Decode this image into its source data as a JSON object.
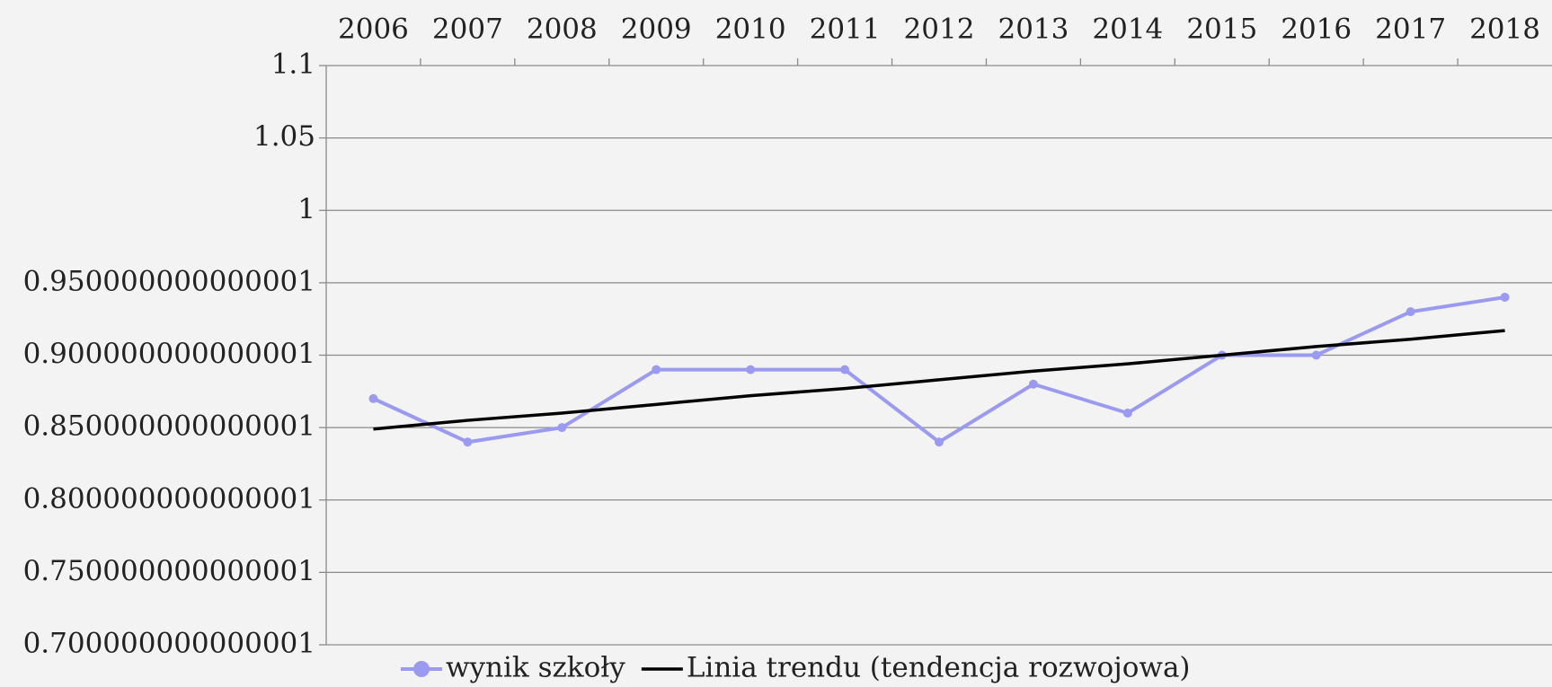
{
  "chart_data": {
    "type": "line",
    "categories": [
      "2006",
      "2007",
      "2008",
      "2009",
      "2010",
      "2011",
      "2012",
      "2013",
      "2014",
      "2015",
      "2016",
      "2017",
      "2018"
    ],
    "series": [
      {
        "name": "wynik szkoły",
        "color": "#9a9af0",
        "values": [
          0.87,
          0.84,
          0.85,
          0.89,
          0.89,
          0.89,
          0.84,
          0.88,
          0.86,
          0.9,
          0.9,
          0.93,
          0.94
        ],
        "marker": true
      },
      {
        "name": "Linia trendu (tendencja rozwojowa)",
        "color": "#000000",
        "values": [
          0.849,
          0.855,
          0.86,
          0.866,
          0.872,
          0.877,
          0.883,
          0.889,
          0.894,
          0.9,
          0.906,
          0.911,
          0.917
        ],
        "marker": false
      }
    ],
    "ylim": [
      0.7,
      1.1
    ],
    "yticks": [
      {
        "value": 0.7,
        "label": "0.700000000000001"
      },
      {
        "value": 0.75,
        "label": "0.750000000000001"
      },
      {
        "value": 0.8,
        "label": "0.800000000000001"
      },
      {
        "value": 0.85,
        "label": "0.850000000000001"
      },
      {
        "value": 0.9,
        "label": "0.900000000000001"
      },
      {
        "value": 0.95,
        "label": "0.950000000000001"
      },
      1,
      1.05,
      1.1
    ],
    "grid": true,
    "legend": "bottom"
  }
}
